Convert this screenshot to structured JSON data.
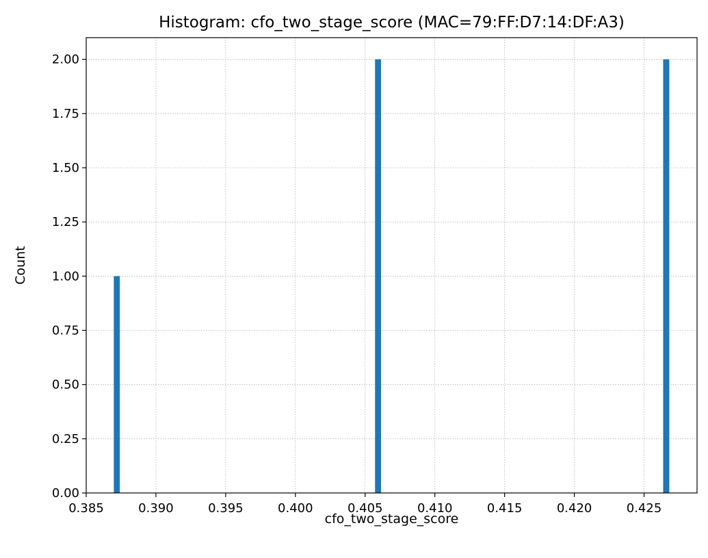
{
  "chart_data": {
    "type": "bar",
    "title": "Histogram: cfo_two_stage_score (MAC=79:FF:D7:14:DF:A3)",
    "xlabel": "cfo_two_stage_score",
    "ylabel": "Count",
    "xlim": [
      0.385,
      0.4288
    ],
    "ylim": [
      0,
      2.1
    ],
    "xticks": [
      0.385,
      0.39,
      0.395,
      0.4,
      0.405,
      0.41,
      0.415,
      0.42,
      0.425
    ],
    "xtick_labels": [
      "0.385",
      "0.390",
      "0.395",
      "0.400",
      "0.405",
      "0.410",
      "0.415",
      "0.420",
      "0.425"
    ],
    "yticks": [
      0,
      0.25,
      0.5,
      0.75,
      1.0,
      1.25,
      1.5,
      1.75,
      2.0
    ],
    "ytick_labels": [
      "0.00",
      "0.25",
      "0.50",
      "0.75",
      "1.00",
      "1.25",
      "1.50",
      "1.75",
      "2.00"
    ],
    "grid": true,
    "bar_color": "#1f77b4",
    "bars": [
      {
        "x0": 0.38698,
        "x1": 0.38741,
        "value": 1
      },
      {
        "x0": 0.40571,
        "x1": 0.40614,
        "value": 2
      },
      {
        "x0": 0.42637,
        "x1": 0.42681,
        "value": 2
      }
    ]
  }
}
